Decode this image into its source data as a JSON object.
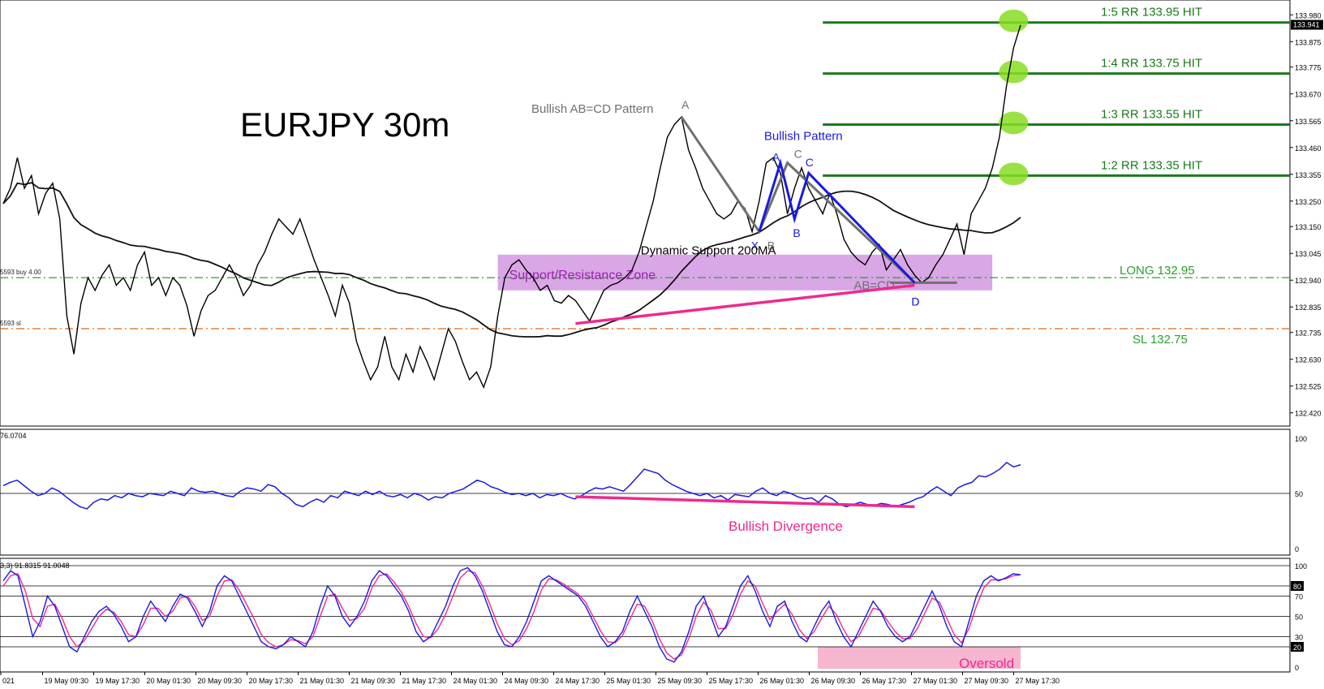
{
  "chart_data": {
    "type": "line",
    "title": "EURJPY 30m",
    "price_panel": {
      "ylim": [
        132.4,
        134.0
      ],
      "y_ticks": [
        "133.980",
        "133.875",
        "133.775",
        "133.670",
        "133.565",
        "133.460",
        "133.355",
        "133.250",
        "133.150",
        "133.045",
        "132.940",
        "132.835",
        "132.735",
        "132.630",
        "132.525",
        "132.420"
      ],
      "current_price": "133.941",
      "left_labels": {
        "buy": "5593 buy 4.00",
        "sl": "5593 sl"
      },
      "levels": [
        {
          "name": "1:5 RR 133.95 HIT",
          "value": 133.95,
          "kind": "target"
        },
        {
          "name": "1:4 RR 133.75 HIT",
          "value": 133.75,
          "kind": "target"
        },
        {
          "name": "1:3 RR 133.55 HIT",
          "value": 133.55,
          "kind": "target"
        },
        {
          "name": "1:2 RR 133.35 HIT",
          "value": 133.35,
          "kind": "target"
        },
        {
          "name": "LONG 132.95",
          "value": 132.95,
          "kind": "entry"
        },
        {
          "name": "SL 132.75",
          "value": 132.75,
          "kind": "stop"
        }
      ],
      "zone": {
        "label": "Support/Resistance Zone",
        "low": 132.9,
        "high": 133.04
      },
      "annotations": {
        "pattern_gray": "Bullish AB=CD Pattern",
        "pattern_blue": "Bullish Pattern",
        "ma": "Dynamic Support 200MA",
        "abcd": "AB=CD",
        "points": [
          "A",
          "B",
          "C",
          "D",
          "X",
          "B",
          "A",
          "C",
          "D"
        ]
      },
      "close": [
        133.24,
        133.3,
        133.42,
        133.3,
        133.35,
        133.2,
        133.28,
        133.32,
        133.18,
        132.8,
        132.65,
        132.85,
        132.95,
        132.9,
        132.96,
        133.0,
        132.92,
        132.95,
        132.9,
        133.0,
        133.05,
        132.92,
        132.95,
        132.88,
        132.95,
        132.92,
        132.84,
        132.72,
        132.82,
        132.88,
        132.9,
        132.95,
        133.0,
        132.95,
        132.88,
        132.92,
        133.0,
        133.05,
        133.12,
        133.18,
        133.15,
        133.12,
        133.18,
        133.1,
        133.02,
        132.95,
        132.88,
        132.8,
        132.92,
        132.85,
        132.7,
        132.62,
        132.55,
        132.6,
        132.72,
        132.6,
        132.55,
        132.65,
        132.58,
        132.68,
        132.62,
        132.55,
        132.65,
        132.75,
        132.7,
        132.62,
        132.55,
        132.58,
        132.52,
        132.6,
        132.8,
        132.95,
        133.0,
        133.02,
        132.98,
        132.95,
        132.9,
        132.92,
        132.86,
        132.85,
        132.88,
        132.86,
        132.82,
        132.78,
        132.84,
        132.9,
        132.92,
        132.93,
        132.95,
        132.98,
        133.05,
        133.15,
        133.25,
        133.38,
        133.5,
        133.55,
        133.58,
        133.45,
        133.38,
        133.3,
        133.25,
        133.2,
        133.18,
        133.2,
        133.25,
        133.22,
        133.13,
        133.25,
        133.4,
        133.42,
        133.36,
        133.2,
        133.3,
        133.38,
        133.3,
        133.25,
        133.2,
        133.28,
        133.2,
        133.1,
        133.05,
        133.02,
        133.0,
        133.05,
        133.08,
        132.98,
        133.02,
        133.06,
        133.0,
        132.96,
        132.93,
        132.95,
        133.0,
        133.04,
        133.1,
        133.16,
        133.04,
        133.2,
        133.25,
        133.3,
        133.38,
        133.5,
        133.7,
        133.85,
        133.94
      ]
    },
    "rsi_panel": {
      "label": "76.0704",
      "ylim": [
        0,
        100
      ],
      "y_ticks": [
        "100",
        "50",
        "0"
      ],
      "annotation": "Bullish Divergence",
      "values": [
        57,
        60,
        62,
        57,
        52,
        48,
        50,
        55,
        52,
        47,
        42,
        38,
        36,
        42,
        45,
        44,
        48,
        46,
        50,
        48,
        47,
        50,
        49,
        48,
        52,
        50,
        48,
        55,
        52,
        51,
        52,
        50,
        48,
        47,
        52,
        55,
        54,
        52,
        58,
        56,
        50,
        46,
        40,
        38,
        42,
        45,
        42,
        48,
        46,
        52,
        50,
        48,
        52,
        49,
        52,
        48,
        47,
        49,
        46,
        50,
        48,
        44,
        47,
        46,
        50,
        52,
        54,
        58,
        62,
        60,
        56,
        54,
        51,
        49,
        50,
        48,
        50,
        46,
        49,
        48,
        50,
        47,
        45,
        48,
        52,
        55,
        54,
        56,
        54,
        52,
        58,
        65,
        72,
        70,
        68,
        62,
        58,
        55,
        52,
        50,
        48,
        50,
        46,
        48,
        44,
        49,
        48,
        47,
        52,
        55,
        50,
        48,
        52,
        50,
        47,
        45,
        46,
        42,
        48,
        45,
        40,
        38,
        40,
        42,
        40,
        39,
        41,
        40,
        38,
        40,
        42,
        45,
        47,
        52,
        56,
        52,
        48,
        55,
        58,
        60,
        66,
        65,
        68,
        72,
        78,
        74,
        76
      ]
    },
    "stoch_panel": {
      "label": "3,3) 91.8315 91.0048",
      "ylim": [
        0,
        100
      ],
      "y_ticks": [
        "100",
        "80",
        "70",
        "50",
        "30",
        "20",
        "0"
      ],
      "annotation": "Oversold",
      "k": [
        85,
        95,
        90,
        60,
        30,
        45,
        70,
        60,
        40,
        20,
        15,
        30,
        45,
        55,
        60,
        52,
        40,
        25,
        30,
        50,
        65,
        55,
        45,
        60,
        72,
        68,
        55,
        40,
        55,
        80,
        90,
        85,
        70,
        55,
        40,
        25,
        20,
        18,
        22,
        30,
        25,
        20,
        35,
        60,
        80,
        70,
        50,
        40,
        50,
        65,
        85,
        95,
        90,
        80,
        70,
        55,
        35,
        25,
        30,
        45,
        60,
        80,
        95,
        98,
        90,
        75,
        55,
        35,
        22,
        20,
        30,
        45,
        65,
        85,
        90,
        85,
        80,
        75,
        70,
        60,
        45,
        30,
        20,
        25,
        35,
        55,
        70,
        55,
        40,
        20,
        8,
        5,
        15,
        35,
        60,
        70,
        50,
        30,
        40,
        60,
        80,
        90,
        75,
        55,
        40,
        60,
        65,
        45,
        30,
        25,
        40,
        55,
        65,
        45,
        30,
        20,
        35,
        50,
        65,
        55,
        40,
        30,
        25,
        30,
        45,
        60,
        75,
        60,
        40,
        25,
        20,
        45,
        70,
        85,
        90,
        85,
        88,
        92,
        91
      ],
      "d": [
        80,
        90,
        92,
        75,
        48,
        40,
        60,
        62,
        48,
        30,
        20,
        26,
        38,
        50,
        57,
        54,
        45,
        32,
        30,
        42,
        58,
        58,
        50,
        55,
        68,
        70,
        60,
        46,
        50,
        70,
        85,
        86,
        76,
        62,
        48,
        32,
        24,
        20,
        22,
        27,
        26,
        23,
        30,
        50,
        70,
        72,
        58,
        46,
        48,
        58,
        78,
        90,
        92,
        84,
        74,
        60,
        43,
        30,
        29,
        38,
        52,
        70,
        88,
        95,
        93,
        80,
        62,
        43,
        28,
        22,
        26,
        38,
        55,
        76,
        87,
        86,
        82,
        77,
        72,
        64,
        50,
        36,
        25,
        24,
        31,
        47,
        62,
        60,
        46,
        28,
        14,
        8,
        12,
        28,
        50,
        64,
        56,
        38,
        38,
        52,
        72,
        85,
        80,
        63,
        47,
        55,
        62,
        52,
        37,
        28,
        35,
        48,
        60,
        52,
        37,
        25,
        30,
        44,
        58,
        56,
        45,
        35,
        28,
        28,
        38,
        53,
        68,
        64,
        48,
        32,
        24,
        38,
        60,
        78,
        86,
        86,
        87,
        90,
        91
      ]
    },
    "x_ticks": [
      "021",
      "19 May 09:30",
      "19 May 17:30",
      "20 May 01:30",
      "20 May 09:30",
      "20 May 17:30",
      "21 May 01:30",
      "21 May 09:30",
      "21 May 17:30",
      "24 May 01:30",
      "24 May 09:30",
      "24 May 17:30",
      "25 May 01:30",
      "25 May 09:30",
      "25 May 17:30",
      "26 May 01:30",
      "26 May 09:30",
      "26 May 17:30",
      "27 May 01:30",
      "27 May 09:30",
      "27 May 17:30"
    ]
  },
  "colors": {
    "target": "#1a7a1a",
    "entry": "#2ca02c",
    "stop": "#d2691e",
    "zone": "#cc88dd",
    "gray": "#707070",
    "blue": "#1a1adf",
    "pink": "#ee2a90",
    "hit": "#88dd22",
    "rsi": "#1a1adf",
    "stoch_d": "#ee2a90"
  }
}
